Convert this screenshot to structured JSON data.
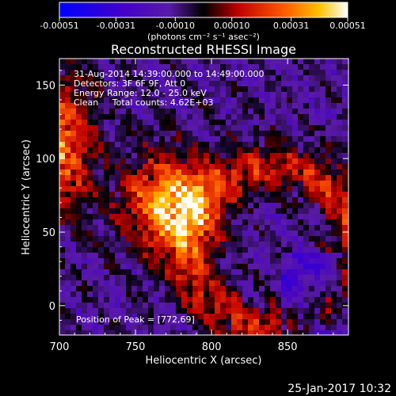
{
  "colorbar": {
    "tick_labels": [
      "-0.00051",
      "-0.00031",
      "-0.00010",
      "0.00010",
      "0.00031",
      "0.00051"
    ],
    "range": [
      -0.00051,
      0.00051
    ],
    "units_label": "(photons cm⁻² s⁻¹ asec⁻²)"
  },
  "chart_data": {
    "type": "heatmap",
    "title": "Reconstructed RHESSI Image",
    "xlabel": "Heliocentric X (arcsec)",
    "ylabel": "Heliocentric Y (arcsec)",
    "xlim": [
      700,
      890
    ],
    "ylim": [
      -20,
      168
    ],
    "x_ticks": [
      700,
      750,
      800,
      850
    ],
    "y_ticks": [
      0,
      50,
      100,
      150
    ],
    "grid": false,
    "annotations": [
      "31-Aug-2014 14:39:00.000 to 14:49:00.000",
      "Detectors: 3F 6F 9F, Att 0",
      "Energy Range: 12.0 - 25.0 keV",
      "Clean     Total counts: 4.62E+03"
    ],
    "peak": {
      "label": "Position of Peak = [772,69]",
      "x": 772,
      "y": 69
    }
  },
  "footer": {
    "timestamp": "25-Jan-2017 10:32"
  }
}
